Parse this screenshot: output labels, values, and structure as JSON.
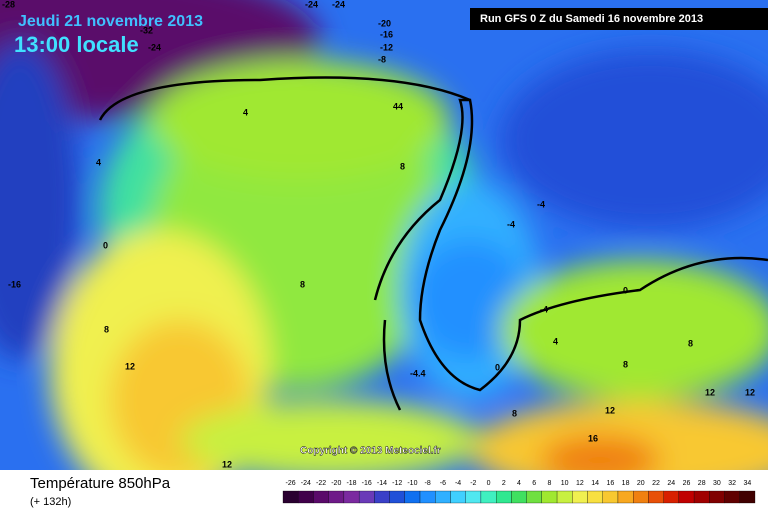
{
  "header": {
    "date": "Jeudi 21 novembre 2013",
    "time": "13:00 locale",
    "run": "Run GFS 0 Z du Samedi 16 novembre 2013"
  },
  "copyright": "Copyright © 2013 Meteociel.fr",
  "footer": {
    "title": "Température 850hPa",
    "lead": "(+ 132h)"
  },
  "legend": {
    "values": [
      -26,
      -24,
      -22,
      -20,
      -18,
      -16,
      -14,
      -12,
      -10,
      -8,
      -6,
      -4,
      -2,
      0,
      2,
      4,
      6,
      8,
      10,
      12,
      14,
      16,
      18,
      20,
      22,
      24,
      26,
      28,
      30,
      32,
      34
    ],
    "colors": [
      "#2a0030",
      "#40004a",
      "#5a0a6a",
      "#6e1a88",
      "#7b2aa0",
      "#6a3ab8",
      "#3a40c8",
      "#2050d8",
      "#1070f0",
      "#2090ff",
      "#30b0ff",
      "#40d0ff",
      "#50e8f0",
      "#40f0c0",
      "#30e890",
      "#40e060",
      "#70e040",
      "#a0e830",
      "#c8f040",
      "#f0f050",
      "#f8e040",
      "#f8c830",
      "#f8a820",
      "#f08010",
      "#e85008",
      "#d82000",
      "#c00000",
      "#a00000",
      "#800000",
      "#600000",
      "#400000"
    ]
  },
  "contour_labels": [
    "-28",
    "-24",
    "-24",
    "-32",
    "-24",
    "-20",
    "-16",
    "-12",
    "-8",
    "-16",
    "4",
    "4",
    "0",
    "-4",
    "44",
    "8",
    "8",
    "8",
    "12",
    "12",
    "-4",
    "-4",
    "0",
    "-4",
    "4",
    "8",
    "8",
    "12",
    "12",
    "12",
    "16",
    "-4.4",
    "0",
    "8"
  ]
}
